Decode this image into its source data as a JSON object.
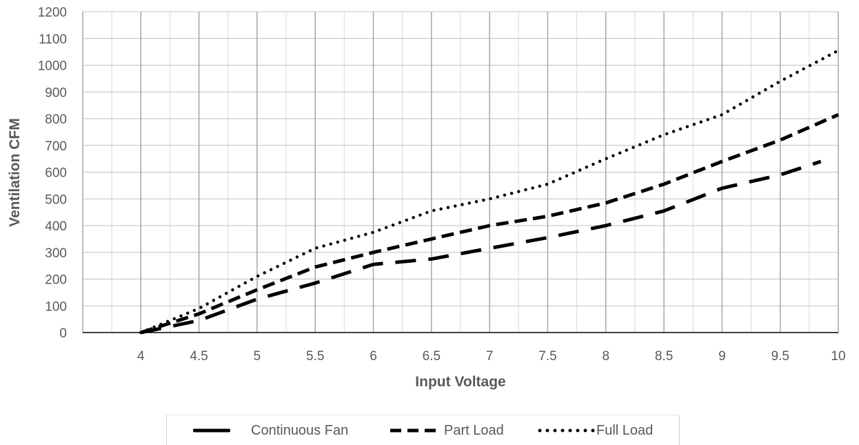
{
  "chart_data": {
    "type": "line",
    "xlabel": "Input Voltage",
    "ylabel": "Ventilation CFM",
    "xlim": [
      3.5,
      10
    ],
    "ylim": [
      0,
      1200
    ],
    "x_ticks": [
      "4",
      "4.5",
      "5",
      "5.5",
      "6",
      "6.5",
      "7",
      "7.5",
      "8",
      "8.5",
      "9",
      "9.5",
      "10"
    ],
    "y_ticks": [
      "0",
      "100",
      "200",
      "300",
      "400",
      "500",
      "600",
      "700",
      "800",
      "900",
      "1000",
      "1100",
      "1200"
    ],
    "grid": true,
    "legend_position": "bottom",
    "series": [
      {
        "name": "Continuous Fan",
        "style": "long-dash",
        "x": [
          4,
          4.5,
          5,
          5.5,
          6,
          6.5,
          7,
          7.5,
          8,
          8.5,
          9,
          9.5,
          9.85
        ],
        "y": [
          0,
          45,
          125,
          185,
          255,
          275,
          315,
          355,
          400,
          455,
          540,
          590,
          640
        ]
      },
      {
        "name": "Part Load",
        "style": "dash",
        "x": [
          4,
          4.5,
          5,
          5.5,
          6,
          6.5,
          7,
          7.5,
          8,
          8.5,
          9,
          9.5,
          10
        ],
        "y": [
          0,
          70,
          160,
          245,
          300,
          350,
          400,
          435,
          485,
          555,
          640,
          720,
          815
        ]
      },
      {
        "name": "Full Load",
        "style": "dot",
        "x": [
          4,
          4.5,
          5,
          5.5,
          6,
          6.5,
          7,
          7.5,
          8,
          8.5,
          9,
          9.5,
          10
        ],
        "y": [
          0,
          90,
          210,
          315,
          375,
          455,
          500,
          555,
          650,
          740,
          815,
          940,
          1055
        ]
      }
    ]
  },
  "colors": {
    "line": "#000000",
    "grid": "#bfbfbf",
    "text": "#595959",
    "axis": "#000000"
  }
}
